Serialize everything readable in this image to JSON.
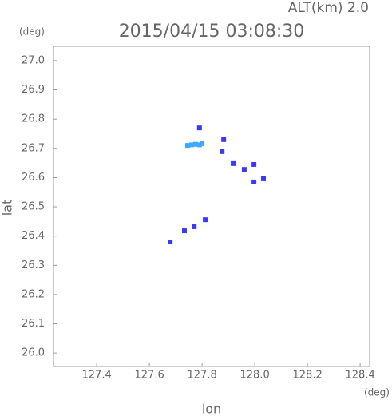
{
  "chart_data": {
    "type": "scatter",
    "title": "2015/04/15 03:08:30",
    "subtitle": "ALT(km) 2.0",
    "ylabel": "lat",
    "xlabel": "lon",
    "yunit": "(deg)",
    "xunit": "(deg)",
    "xlim": [
      127.236,
      128.436
    ],
    "ylim": [
      25.954,
      27.049
    ],
    "xticks": [
      127.4,
      127.6,
      127.8,
      {
        "value": 128.0,
        "label": "128.0"
      },
      128.2,
      128.4
    ],
    "yticks": [
      {
        "value": 26.0,
        "label": "26.0"
      },
      26.1,
      26.2,
      26.3,
      26.4,
      26.5,
      26.6,
      26.7,
      26.8,
      26.9,
      {
        "value": 27.0,
        "label": "27.0"
      }
    ],
    "series": [
      {
        "color": "#3fa8ff",
        "x": [
          127.745,
          127.76,
          127.775,
          127.79,
          127.8
        ],
        "y": [
          26.71,
          26.712,
          26.714,
          26.712,
          26.716
        ]
      },
      {
        "color": "#3a3af0",
        "x": [
          127.79,
          127.876,
          127.882,
          127.918,
          127.96,
          127.997,
          128.033,
          127.997,
          127.812,
          127.77,
          127.733,
          127.679
        ],
        "y": [
          26.77,
          26.689,
          26.73,
          26.648,
          26.628,
          26.645,
          26.596,
          26.585,
          26.456,
          26.432,
          26.418,
          26.38
        ]
      }
    ]
  }
}
